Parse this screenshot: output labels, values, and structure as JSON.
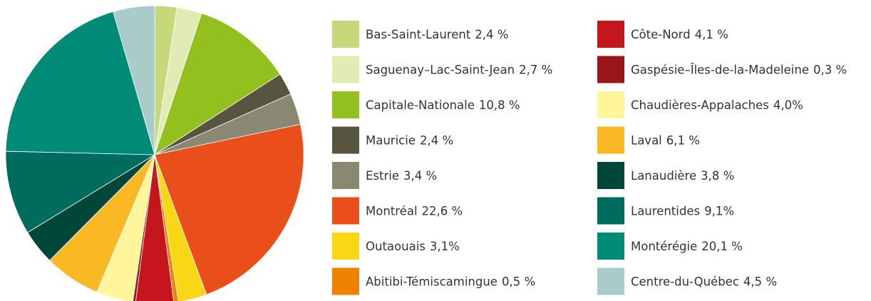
{
  "chart_data": {
    "type": "pie",
    "categories": [
      "Bas-Saint-Laurent",
      "Saguenay–Lac-Saint-Jean",
      "Capitale-Nationale",
      "Mauricie",
      "Estrie",
      "Montréal",
      "Outaouais",
      "Abitibi-Témiscamingue",
      "Côte-Nord",
      "Gaspésie–Îles-de-la-Madeleine",
      "Chaudières-Appalaches",
      "Laval",
      "Lanaudière",
      "Laurentides",
      "Montérégie",
      "Centre-du-Québec"
    ],
    "values": [
      2.4,
      2.7,
      10.8,
      2.4,
      3.4,
      22.6,
      3.1,
      0.5,
      4.1,
      0.3,
      4.0,
      6.1,
      3.8,
      9.1,
      20.1,
      4.5
    ],
    "value_labels": [
      "2,4 %",
      "2,7 %",
      "10,8 %",
      "2,4 %",
      "3,4 %",
      "22,6 %",
      "3,1%",
      "0,5 %",
      "4,1 %",
      "0,3 %",
      "4,0%",
      "6,1 %",
      "3,8 %",
      "9,1%",
      "20,1 %",
      "4,5 %"
    ],
    "colors": [
      "#c5d97a",
      "#e3ebb5",
      "#93c01f",
      "#57543f",
      "#8a8873",
      "#e94e1b",
      "#f9d616",
      "#ef8200",
      "#c5161d",
      "#9a1518",
      "#fff59b",
      "#fbb825",
      "#00473a",
      "#006c5e",
      "#008b77",
      "#a9cbc9"
    ],
    "legend": "right"
  }
}
